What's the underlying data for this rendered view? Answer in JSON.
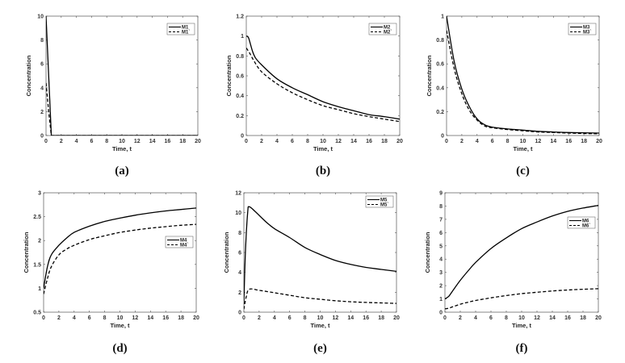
{
  "chart_data": [
    {
      "type": "line",
      "panel_label": "(a)",
      "xlabel": "Time, t",
      "ylabel": "Concentration",
      "xlim": [
        0,
        20
      ],
      "ylim": [
        0,
        10
      ],
      "xticks": [
        "0",
        "2",
        "4",
        "6",
        "8",
        "10",
        "12",
        "14",
        "16",
        "18",
        "20"
      ],
      "yticks": [
        "0",
        "2",
        "4",
        "6",
        "8",
        "10"
      ],
      "legend_position": "top-right",
      "series": [
        {
          "name": "M1",
          "style": "solid",
          "x": [
            0,
            0.35,
            0.7,
            2,
            20
          ],
          "y": [
            10,
            5,
            0,
            0,
            0
          ]
        },
        {
          "name": "M1`",
          "style": "dashed",
          "x": [
            0,
            0.35,
            0.7,
            2,
            20
          ],
          "y": [
            4.4,
            2,
            0,
            0,
            0
          ]
        }
      ]
    },
    {
      "type": "line",
      "panel_label": "(b)",
      "xlabel": "Time, t",
      "ylabel": "Concentration",
      "xlim": [
        0,
        20
      ],
      "ylim": [
        0,
        1.2
      ],
      "xticks": [
        "0",
        "2",
        "4",
        "6",
        "8",
        "10",
        "12",
        "14",
        "16",
        "18",
        "20"
      ],
      "yticks": [
        "0",
        "0.2",
        "0.4",
        "0.6",
        "0.8",
        "1",
        "1.2"
      ],
      "legend_position": "top-right",
      "series": [
        {
          "name": "M2",
          "style": "solid",
          "x": [
            0,
            0.3,
            0.8,
            1.2,
            2,
            4,
            6,
            8,
            10,
            12,
            14,
            16,
            18,
            20
          ],
          "y": [
            1.0,
            0.98,
            0.85,
            0.78,
            0.71,
            0.57,
            0.48,
            0.41,
            0.34,
            0.29,
            0.25,
            0.21,
            0.19,
            0.165
          ]
        },
        {
          "name": "M2`",
          "style": "dashed",
          "x": [
            0,
            0.5,
            1,
            2,
            4,
            6,
            8,
            10,
            12,
            14,
            16,
            18,
            20
          ],
          "y": [
            0.88,
            0.82,
            0.75,
            0.64,
            0.52,
            0.43,
            0.36,
            0.3,
            0.26,
            0.22,
            0.19,
            0.165,
            0.14
          ]
        }
      ]
    },
    {
      "type": "line",
      "panel_label": "(c)",
      "xlabel": "Time, t",
      "ylabel": "Concentration",
      "xlim": [
        0,
        20
      ],
      "ylim": [
        0,
        1
      ],
      "xticks": [
        "0",
        "2",
        "4",
        "6",
        "8",
        "10",
        "12",
        "14",
        "16",
        "18",
        "20"
      ],
      "yticks": [
        "0",
        "0.2",
        "0.4",
        "0.6",
        "0.8",
        "1"
      ],
      "legend_position": "top-right",
      "series": [
        {
          "name": "M3",
          "style": "solid",
          "x": [
            0,
            1,
            2,
            3,
            4,
            5,
            6,
            8,
            10,
            12,
            14,
            16,
            20
          ],
          "y": [
            1,
            0.62,
            0.39,
            0.24,
            0.14,
            0.09,
            0.07,
            0.055,
            0.045,
            0.035,
            0.03,
            0.025,
            0.02
          ]
        },
        {
          "name": "M3`",
          "style": "dashed",
          "x": [
            0,
            1,
            2,
            3,
            4,
            5,
            6,
            8,
            10,
            12,
            14,
            16,
            20
          ],
          "y": [
            0.88,
            0.56,
            0.35,
            0.21,
            0.13,
            0.08,
            0.065,
            0.05,
            0.04,
            0.03,
            0.025,
            0.02,
            0.015
          ]
        }
      ]
    },
    {
      "type": "line",
      "panel_label": "(d)",
      "xlabel": "Time, t",
      "ylabel": "Concentration",
      "xlim": [
        0,
        20
      ],
      "ylim": [
        0.5,
        3
      ],
      "xticks": [
        "0",
        "2",
        "4",
        "6",
        "8",
        "10",
        "12",
        "14",
        "16",
        "18",
        "20"
      ],
      "yticks": [
        "0.5",
        "1",
        "1.5",
        "2",
        "2.5",
        "3"
      ],
      "legend_position": "center-right",
      "series": [
        {
          "name": "M4",
          "style": "solid",
          "x": [
            0,
            0.5,
            1,
            2,
            3,
            4,
            6,
            8,
            10,
            12,
            14,
            16,
            18,
            20
          ],
          "y": [
            1.0,
            1.45,
            1.7,
            1.9,
            2.05,
            2.17,
            2.3,
            2.4,
            2.47,
            2.53,
            2.58,
            2.62,
            2.65,
            2.68
          ]
        },
        {
          "name": "M4`",
          "style": "dashed",
          "x": [
            0,
            0.5,
            1,
            2,
            3,
            4,
            6,
            8,
            10,
            12,
            14,
            16,
            18,
            20
          ],
          "y": [
            0.88,
            1.2,
            1.45,
            1.7,
            1.82,
            1.9,
            2.02,
            2.1,
            2.17,
            2.22,
            2.26,
            2.29,
            2.32,
            2.34
          ]
        }
      ]
    },
    {
      "type": "line",
      "panel_label": "(e)",
      "xlabel": "Time, t",
      "ylabel": "Concentration",
      "xlim": [
        0,
        20
      ],
      "ylim": [
        0,
        12
      ],
      "xticks": [
        "0",
        "2",
        "4",
        "6",
        "8",
        "10",
        "12",
        "14",
        "16",
        "18",
        "20"
      ],
      "yticks": [
        "0",
        "2",
        "4",
        "6",
        "8",
        "10",
        "12"
      ],
      "legend_position": "top-right",
      "series": [
        {
          "name": "M5",
          "style": "solid",
          "x": [
            0,
            0.2,
            0.5,
            0.7,
            1.5,
            3,
            4,
            6,
            8,
            10,
            12,
            14,
            16,
            18,
            20
          ],
          "y": [
            0.8,
            6,
            10,
            10.6,
            10.1,
            9.0,
            8.4,
            7.5,
            6.5,
            5.8,
            5.2,
            4.8,
            4.5,
            4.3,
            4.1
          ]
        },
        {
          "name": "M5`",
          "style": "dashed",
          "x": [
            0,
            0.3,
            0.7,
            2,
            4,
            6,
            8,
            10,
            12,
            14,
            16,
            18,
            20
          ],
          "y": [
            0.3,
            1.5,
            2.3,
            2.2,
            1.95,
            1.7,
            1.45,
            1.3,
            1.15,
            1.05,
            0.98,
            0.93,
            0.88
          ]
        }
      ]
    },
    {
      "type": "line",
      "panel_label": "(f)",
      "xlabel": "Time, t",
      "ylabel": "Concentration",
      "xlim": [
        0,
        20
      ],
      "ylim": [
        0,
        9
      ],
      "xticks": [
        "0",
        "2",
        "4",
        "6",
        "8",
        "10",
        "12",
        "14",
        "16",
        "18",
        "20"
      ],
      "yticks": [
        "0",
        "1",
        "2",
        "3",
        "4",
        "5",
        "6",
        "7",
        "8",
        "9"
      ],
      "legend_position": "upper-right",
      "series": [
        {
          "name": "M6",
          "style": "solid",
          "x": [
            0,
            0.5,
            1,
            2,
            3,
            4,
            6,
            8,
            10,
            12,
            14,
            16,
            18,
            20
          ],
          "y": [
            1.0,
            1.2,
            1.6,
            2.4,
            3.1,
            3.75,
            4.8,
            5.6,
            6.3,
            6.8,
            7.25,
            7.6,
            7.85,
            8.05
          ]
        },
        {
          "name": "M6`",
          "style": "dashed",
          "x": [
            0,
            0.5,
            1,
            2,
            3,
            4,
            6,
            8,
            10,
            12,
            14,
            16,
            18,
            20
          ],
          "y": [
            0.25,
            0.3,
            0.4,
            0.6,
            0.75,
            0.88,
            1.08,
            1.25,
            1.4,
            1.5,
            1.6,
            1.67,
            1.73,
            1.77
          ]
        }
      ]
    }
  ]
}
